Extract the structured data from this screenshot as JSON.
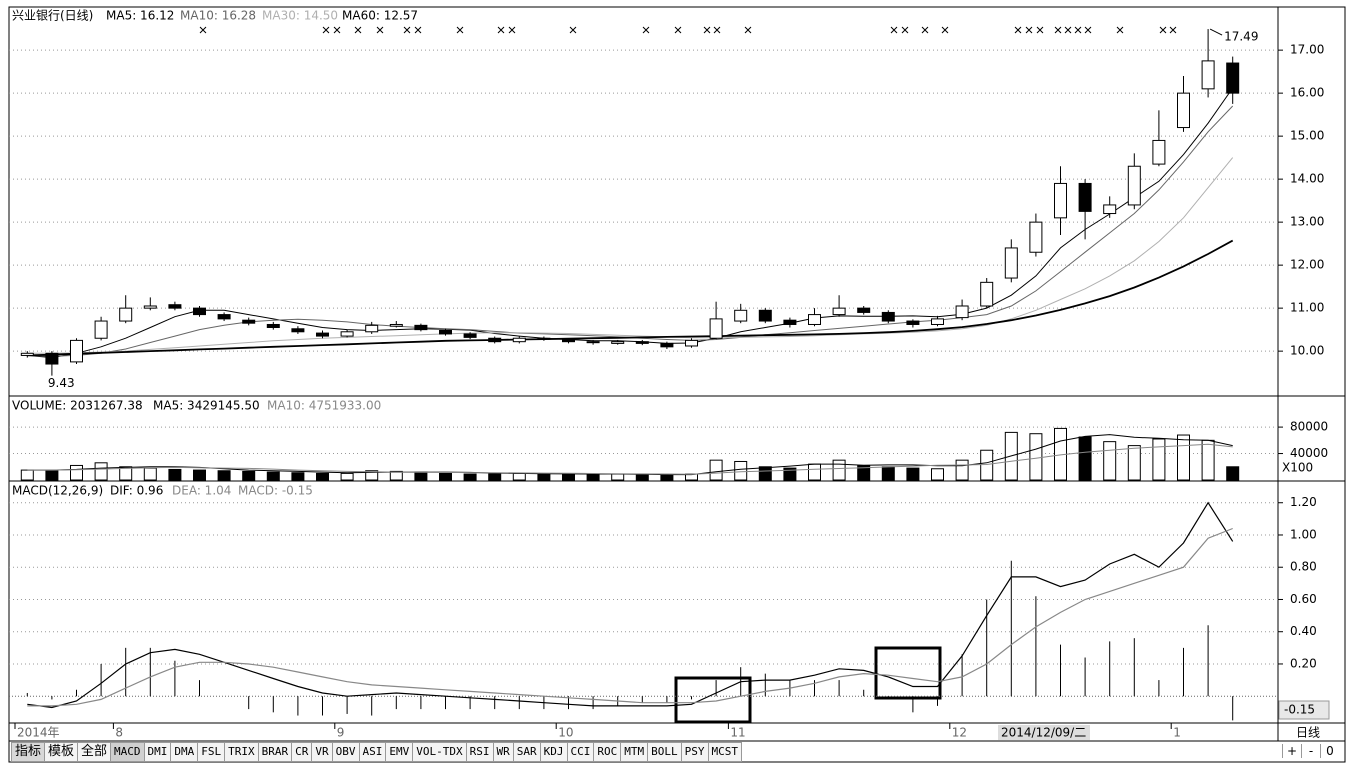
{
  "header": {
    "title": "兴业银行(日线)"
  },
  "chart_data": [
    {
      "type": "candlestick",
      "categories": [
        "2014年",
        null,
        null,
        null,
        "8",
        null,
        null,
        null,
        null,
        null,
        null,
        null,
        null,
        "9",
        null,
        null,
        null,
        null,
        null,
        null,
        null,
        null,
        "10",
        null,
        null,
        null,
        null,
        null,
        null,
        "11",
        null,
        null,
        null,
        null,
        null,
        null,
        null,
        null,
        "12",
        null,
        null,
        null,
        null,
        null,
        null,
        null,
        null,
        "1",
        null,
        null
      ],
      "open": [
        9.9,
        9.95,
        9.75,
        10.3,
        10.7,
        11.0,
        11.08,
        11.0,
        10.85,
        10.72,
        10.62,
        10.52,
        10.42,
        10.35,
        10.45,
        10.58,
        10.6,
        10.48,
        10.4,
        10.3,
        10.22,
        10.3,
        10.26,
        10.22,
        10.18,
        10.22,
        10.18,
        10.12,
        10.3,
        10.7,
        10.95,
        10.72,
        10.62,
        10.85,
        11.0,
        10.9,
        10.7,
        10.62,
        10.78,
        11.05,
        11.7,
        12.3,
        13.1,
        13.9,
        13.2,
        13.4,
        14.35,
        15.2,
        16.1,
        16.7
      ],
      "high": [
        10.0,
        10.0,
        10.3,
        10.8,
        11.3,
        11.25,
        11.15,
        11.05,
        10.9,
        10.78,
        10.68,
        10.58,
        10.48,
        10.5,
        10.68,
        10.7,
        10.64,
        10.52,
        10.44,
        10.34,
        10.34,
        10.34,
        10.3,
        10.26,
        10.26,
        10.26,
        10.22,
        10.3,
        11.15,
        11.1,
        11.0,
        10.78,
        11.0,
        11.3,
        11.05,
        10.95,
        10.74,
        10.82,
        11.2,
        11.7,
        12.6,
        13.2,
        14.3,
        14.0,
        13.6,
        14.6,
        15.6,
        16.4,
        17.49,
        16.85
      ],
      "low": [
        9.85,
        9.43,
        9.7,
        10.25,
        10.65,
        10.95,
        10.95,
        10.8,
        10.7,
        10.6,
        10.5,
        10.4,
        10.3,
        10.32,
        10.4,
        10.55,
        10.46,
        10.36,
        10.28,
        10.18,
        10.18,
        10.24,
        10.18,
        10.15,
        10.15,
        10.14,
        10.05,
        10.08,
        10.28,
        10.65,
        10.65,
        10.55,
        10.58,
        10.8,
        10.85,
        10.65,
        10.55,
        10.58,
        10.72,
        11.0,
        11.6,
        12.2,
        12.7,
        12.6,
        13.1,
        13.3,
        14.3,
        15.1,
        15.9,
        15.75
      ],
      "close": [
        9.95,
        9.7,
        10.25,
        10.7,
        11.0,
        11.05,
        11.0,
        10.85,
        10.75,
        10.65,
        10.55,
        10.45,
        10.35,
        10.45,
        10.6,
        10.62,
        10.5,
        10.4,
        10.32,
        10.22,
        10.3,
        10.28,
        10.22,
        10.2,
        10.22,
        10.18,
        10.1,
        10.25,
        10.75,
        10.95,
        10.7,
        10.62,
        10.85,
        11.0,
        10.9,
        10.7,
        10.62,
        10.75,
        11.05,
        11.6,
        12.4,
        13.0,
        13.9,
        13.25,
        13.4,
        14.3,
        14.9,
        16.0,
        16.75,
        16.0
      ],
      "series": [
        {
          "name": "MA5: 16.12",
          "color": "#000000",
          "values": [
            9.9,
            9.85,
            9.95,
            10.1,
            10.3,
            10.55,
            10.8,
            10.95,
            10.95,
            10.85,
            10.75,
            10.65,
            10.55,
            10.5,
            10.48,
            10.5,
            10.52,
            10.51,
            10.49,
            10.41,
            10.35,
            10.3,
            10.27,
            10.24,
            10.24,
            10.22,
            10.18,
            10.19,
            10.3,
            10.45,
            10.55,
            10.65,
            10.77,
            10.82,
            10.81,
            10.81,
            10.82,
            10.8,
            10.86,
            11.0,
            11.3,
            11.75,
            12.4,
            12.83,
            13.19,
            13.57,
            13.95,
            14.57,
            15.3,
            16.12
          ]
        },
        {
          "name": "MA10: 16.28",
          "color": "#666666",
          "values": [
            9.9,
            9.88,
            9.9,
            9.95,
            10.05,
            10.2,
            10.35,
            10.5,
            10.6,
            10.68,
            10.72,
            10.74,
            10.72,
            10.68,
            10.62,
            10.58,
            10.55,
            10.52,
            10.5,
            10.46,
            10.42,
            10.4,
            10.38,
            10.36,
            10.33,
            10.3,
            10.27,
            10.25,
            10.27,
            10.32,
            10.38,
            10.43,
            10.48,
            10.53,
            10.58,
            10.63,
            10.68,
            10.72,
            10.78,
            10.85,
            11.05,
            11.4,
            11.85,
            12.3,
            12.75,
            13.2,
            13.75,
            14.4,
            15.1,
            15.7
          ]
        },
        {
          "name": "MA30: 14.50",
          "color": "#b0b0b0",
          "values": [
            9.95,
            9.95,
            9.96,
            9.98,
            10.0,
            10.04,
            10.08,
            10.12,
            10.16,
            10.2,
            10.24,
            10.27,
            10.3,
            10.32,
            10.34,
            10.36,
            10.38,
            10.4,
            10.42,
            10.43,
            10.43,
            10.42,
            10.41,
            10.39,
            10.37,
            10.35,
            10.33,
            10.31,
            10.31,
            10.32,
            10.33,
            10.34,
            10.36,
            10.38,
            10.4,
            10.42,
            10.44,
            10.47,
            10.52,
            10.6,
            10.75,
            10.95,
            11.2,
            11.45,
            11.75,
            12.1,
            12.55,
            13.1,
            13.8,
            14.5
          ]
        },
        {
          "name": "MA60: 12.57",
          "color": "#000000",
          "values": [
            9.9,
            9.92,
            9.94,
            9.96,
            9.98,
            10.0,
            10.02,
            10.04,
            10.06,
            10.08,
            10.1,
            10.12,
            10.14,
            10.16,
            10.18,
            10.2,
            10.22,
            10.24,
            10.25,
            10.26,
            10.27,
            10.28,
            10.29,
            10.3,
            10.31,
            10.32,
            10.33,
            10.34,
            10.35,
            10.36,
            10.37,
            10.38,
            10.39,
            10.4,
            10.42,
            10.44,
            10.47,
            10.51,
            10.56,
            10.63,
            10.72,
            10.83,
            10.96,
            11.11,
            11.28,
            11.48,
            11.71,
            11.97,
            12.26,
            12.57
          ]
        }
      ],
      "ylim": [
        8.98,
        17.98
      ],
      "yticks": [
        {
          "value": 10,
          "label": "10.00"
        },
        {
          "value": 11,
          "label": "11.00"
        },
        {
          "value": 12,
          "label": "12.00"
        },
        {
          "value": 13,
          "label": "13.00"
        },
        {
          "value": 14,
          "label": "14.00"
        },
        {
          "value": 15,
          "label": "15.00"
        },
        {
          "value": 16,
          "label": "16.00"
        },
        {
          "value": 17,
          "label": "17.00"
        }
      ],
      "grid": true
    },
    {
      "type": "bar",
      "title": "VOLUME: 2031267.38",
      "unit": "X100",
      "values": [
        15000,
        14000,
        22000,
        26000,
        20000,
        18000,
        16000,
        15000,
        14000,
        13000,
        12000,
        11000,
        10000,
        10000,
        14000,
        13000,
        12000,
        10000,
        9000,
        9000,
        10000,
        9000,
        9000,
        8000,
        9000,
        8000,
        7000,
        9000,
        30000,
        28000,
        20000,
        18000,
        24000,
        30000,
        22000,
        20000,
        18000,
        17000,
        30000,
        45000,
        72000,
        70000,
        78000,
        65000,
        58000,
        52000,
        62000,
        68000,
        60000,
        20000
      ],
      "series": [
        {
          "name": "MA5: 3429145.50",
          "color": "#000000",
          "values": [
            15000,
            15000,
            16000,
            18000,
            19000,
            20000,
            20000,
            19000,
            17000,
            15000,
            14000,
            13000,
            12000,
            11000,
            11500,
            12000,
            12000,
            12000,
            11500,
            10500,
            10000,
            9500,
            9200,
            9000,
            9000,
            8600,
            8200,
            8200,
            12600,
            16400,
            18600,
            21000,
            24000,
            24000,
            22400,
            22800,
            22800,
            21400,
            21400,
            26000,
            36400,
            46800,
            59000,
            66000,
            68600,
            64600,
            63000,
            61000,
            60000,
            52000
          ]
        },
        {
          "name": "MA10: 4751933.00",
          "color": "#888888",
          "values": [
            15000,
            15000,
            15500,
            16500,
            17500,
            18500,
            19000,
            18500,
            18000,
            17500,
            16500,
            15000,
            14000,
            13000,
            12500,
            12000,
            11800,
            11500,
            11200,
            11000,
            10800,
            10500,
            10200,
            9800,
            9600,
            9300,
            9000,
            8800,
            10500,
            12500,
            13600,
            14800,
            16200,
            17400,
            18500,
            19800,
            21000,
            22200,
            22700,
            23500,
            28500,
            33000,
            38000,
            42000,
            45000,
            48000,
            50000,
            52000,
            54000,
            50000
          ]
        }
      ],
      "ylim": [
        0,
        124000
      ],
      "yticks": [
        40000,
        80000
      ],
      "grid": true
    },
    {
      "type": "macd",
      "title": "MACD(12,26,9)",
      "series": [
        {
          "name": "DIF: 0.96",
          "color": "#000000",
          "values": [
            -0.05,
            -0.07,
            -0.03,
            0.08,
            0.2,
            0.27,
            0.29,
            0.26,
            0.21,
            0.16,
            0.11,
            0.06,
            0.02,
            0.0,
            0.01,
            0.02,
            0.01,
            0.0,
            -0.01,
            -0.02,
            -0.03,
            -0.04,
            -0.05,
            -0.06,
            -0.06,
            -0.06,
            -0.06,
            -0.05,
            0.02,
            0.09,
            0.1,
            0.1,
            0.13,
            0.17,
            0.16,
            0.12,
            0.06,
            0.06,
            0.25,
            0.5,
            0.74,
            0.74,
            0.68,
            0.72,
            0.82,
            0.88,
            0.8,
            0.95,
            1.2,
            0.96
          ]
        },
        {
          "name": "DEA: 1.04",
          "color": "#888888",
          "values": [
            -0.06,
            -0.06,
            -0.05,
            -0.02,
            0.05,
            0.12,
            0.18,
            0.21,
            0.21,
            0.2,
            0.18,
            0.15,
            0.12,
            0.09,
            0.07,
            0.06,
            0.05,
            0.04,
            0.03,
            0.02,
            0.01,
            0.0,
            -0.01,
            -0.02,
            -0.03,
            -0.04,
            -0.04,
            -0.04,
            -0.03,
            0.0,
            0.03,
            0.05,
            0.08,
            0.12,
            0.14,
            0.13,
            0.11,
            0.09,
            0.12,
            0.2,
            0.32,
            0.43,
            0.52,
            0.6,
            0.65,
            0.7,
            0.75,
            0.8,
            0.98,
            1.04
          ]
        }
      ],
      "histogram": {
        "name": "MACD: -0.15",
        "color": "#000000",
        "values": [
          0.02,
          -0.02,
          0.04,
          0.2,
          0.3,
          0.3,
          0.22,
          0.1,
          0.0,
          -0.08,
          -0.1,
          -0.12,
          -0.12,
          -0.11,
          -0.12,
          -0.08,
          -0.08,
          -0.08,
          -0.08,
          -0.08,
          -0.08,
          -0.08,
          -0.08,
          -0.08,
          -0.06,
          -0.04,
          -0.04,
          -0.02,
          0.1,
          0.18,
          0.14,
          0.1,
          0.1,
          0.1,
          0.04,
          -0.02,
          -0.1,
          -0.06,
          0.26,
          0.6,
          0.84,
          0.62,
          0.32,
          0.24,
          0.34,
          0.36,
          0.1,
          0.3,
          0.44,
          -0.15
        ]
      },
      "current_label": "-0.15",
      "ylim": [
        -0.16,
        1.31
      ],
      "yticks": [
        {
          "value": 0.2,
          "label": "0.20"
        },
        {
          "value": 0.4,
          "label": "0.40"
        },
        {
          "value": 0.6,
          "label": "0.60"
        },
        {
          "value": 0.8,
          "label": "0.80"
        },
        {
          "value": 1,
          "label": "1.00"
        },
        {
          "value": 1.2,
          "label": "1.20"
        }
      ],
      "grid": true
    }
  ],
  "cursor_date": "2014/12/09/二",
  "period": "日线",
  "tabs": [
    "指标",
    "模板",
    "全部",
    "MACD",
    "DMI",
    "DMA",
    "FSL",
    "TRIX",
    "BRAR",
    "CR",
    "VR",
    "OBV",
    "ASI",
    "EMV",
    "VOL-TDX",
    "RSI",
    "WR",
    "SAR",
    "KDJ",
    "CCI",
    "ROC",
    "MTM",
    "BOLL",
    "PSY",
    "MCST"
  ],
  "zoom": [
    "+",
    "-",
    "0"
  ]
}
